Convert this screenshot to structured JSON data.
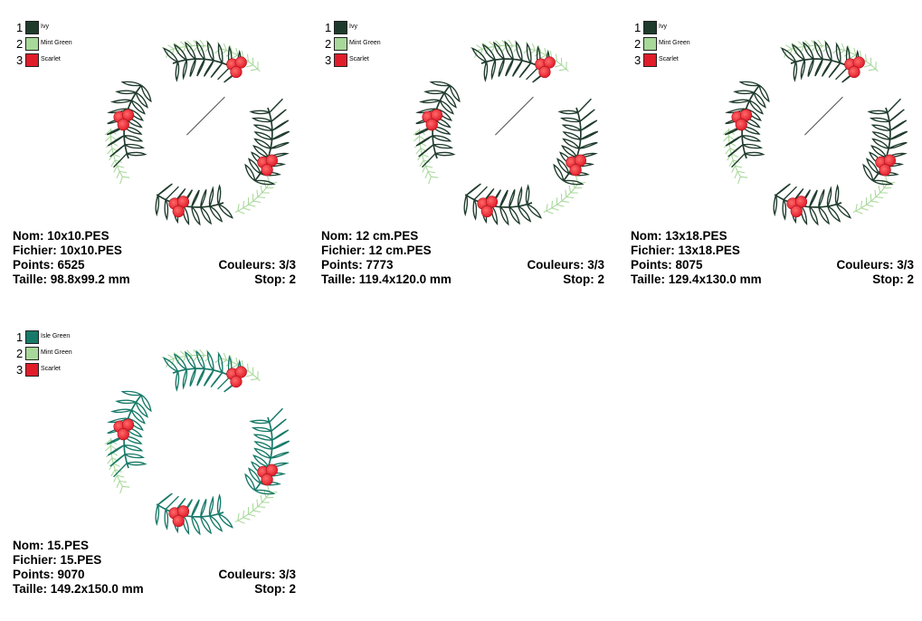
{
  "labels": {
    "nom": "Nom:",
    "fichier": "Fichier:",
    "points": "Points:",
    "taille": "Taille:",
    "couleurs": "Couleurs:",
    "stop": "Stop:"
  },
  "cards": [
    {
      "swatches": [
        {
          "num": "1",
          "name": "Ivy",
          "color": "#1e3b2c"
        },
        {
          "num": "2",
          "name": "Mint Green",
          "color": "#a8d89a"
        },
        {
          "num": "3",
          "name": "Scarlet",
          "color": "#e11d2a"
        }
      ],
      "nom": "10x10.PES",
      "fichier": "10x10.PES",
      "points": "6525",
      "taille": "98.8x99.2 mm",
      "couleurs": "3/3",
      "stop": "2",
      "leaf_color": "#1e3b2c",
      "needle": true
    },
    {
      "swatches": [
        {
          "num": "1",
          "name": "Ivy",
          "color": "#1e3b2c"
        },
        {
          "num": "2",
          "name": "Mint Green",
          "color": "#a8d89a"
        },
        {
          "num": "3",
          "name": "Scarlet",
          "color": "#e11d2a"
        }
      ],
      "nom": "12 cm.PES",
      "fichier": "12 cm.PES",
      "points": "7773",
      "taille": "119.4x120.0 mm",
      "couleurs": "3/3",
      "stop": "2",
      "leaf_color": "#1e3b2c",
      "needle": true
    },
    {
      "swatches": [
        {
          "num": "1",
          "name": "Ivy",
          "color": "#1e3b2c"
        },
        {
          "num": "2",
          "name": "Mint Green",
          "color": "#a8d89a"
        },
        {
          "num": "3",
          "name": "Scarlet",
          "color": "#e11d2a"
        }
      ],
      "nom": "13x18.PES",
      "fichier": "13x18.PES",
      "points": "8075",
      "taille": "129.4x130.0 mm",
      "couleurs": "3/3",
      "stop": "2",
      "leaf_color": "#1e3b2c",
      "needle": true
    },
    {
      "swatches": [
        {
          "num": "1",
          "name": "Isle Green",
          "color": "#177a68"
        },
        {
          "num": "2",
          "name": "Mint Green",
          "color": "#a8d89a"
        },
        {
          "num": "3",
          "name": "Scarlet",
          "color": "#e11d2a"
        }
      ],
      "nom": "15.PES",
      "fichier": "15.PES",
      "points": "9070",
      "taille": "149.2x150.0 mm",
      "couleurs": "3/3",
      "stop": "2",
      "leaf_color": "#177a68",
      "needle": false
    }
  ],
  "mint_color": "#a8d89a",
  "berry_color": "#e11d2a",
  "needle_color": "#555555"
}
